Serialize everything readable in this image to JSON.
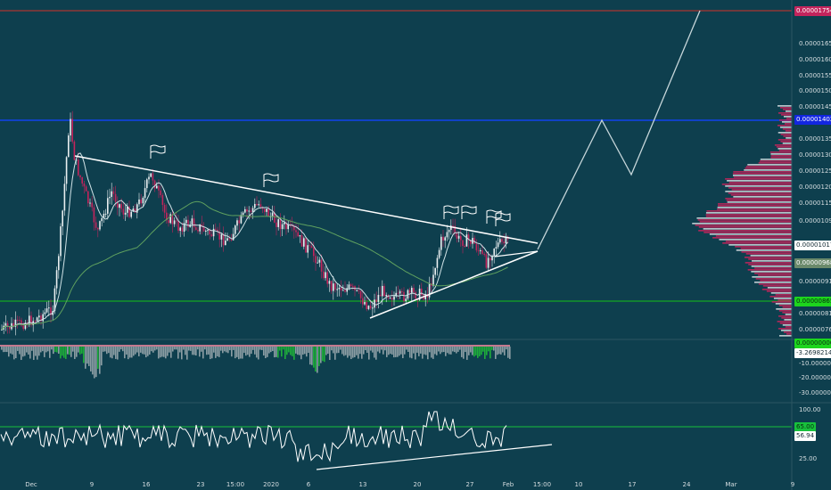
{
  "price_axis": {
    "ticks": [
      "0.00001650",
      "0.00001600",
      "0.00001550",
      "0.00001500",
      "0.00001450",
      "0.00001350",
      "0.00001300",
      "0.00001250",
      "0.00001200",
      "0.00001150",
      "0.00001090",
      "0.00000910",
      "0.00000810",
      "0.00000760"
    ],
    "markers": {
      "top_line": "0.00001754",
      "blue_line": "0.00001402",
      "current": "0.00001017",
      "ma": "0.00000968",
      "green_line": "0.00000865"
    }
  },
  "volume_axis": {
    "ticks": [
      "-10.00000000",
      "-20.00000000",
      "-30.00000000"
    ],
    "markers": {
      "zero": "0.00000000",
      "current": "-3.26982147"
    }
  },
  "rsi_axis": {
    "ticks": [
      "100.00",
      "25.00"
    ],
    "markers": {
      "level": "65.00",
      "current": "56.94"
    }
  },
  "time_axis": [
    "Dec",
    "9",
    "16",
    "23",
    "15:00",
    "2020",
    "6",
    "13",
    "20",
    "27",
    "Feb",
    "15:00",
    "10",
    "17",
    "24",
    "Mar",
    "9"
  ],
  "colors": {
    "background": "#0e3f4e",
    "candle_up": "#e8eef0",
    "candle_down": "#c3245c",
    "sma_fast": "#cfe2e6",
    "sma_slow": "#5fa15f",
    "trendline": "#ffffff",
    "top_line": "#d0332b",
    "blue_line": "#1144ee",
    "green_line": "#17c217",
    "macd_pos": "#1eae3a",
    "macd_neg": "#8c9ea4",
    "rsi_level": "#18c13c"
  },
  "icons": [
    "flag-icon",
    "flag-icon",
    "flag-icon",
    "flag-icon",
    "flag-icon",
    "flag-icon"
  ]
}
